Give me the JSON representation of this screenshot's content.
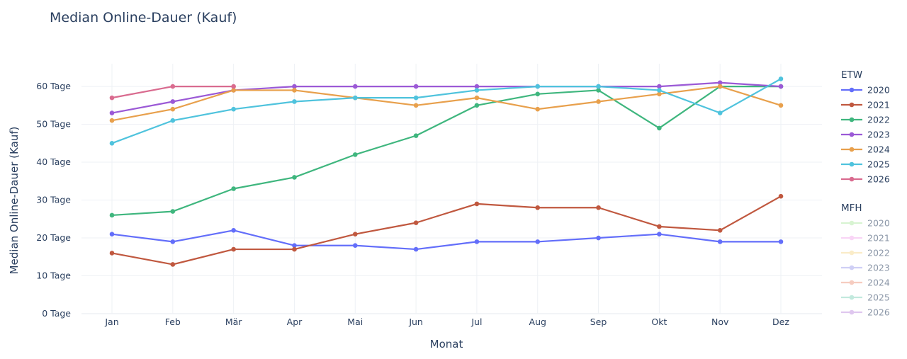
{
  "chart_data": {
    "type": "line",
    "title": "Median Online-Dauer (Kauf)",
    "xlabel": "Monat",
    "ylabel": "Median Online-Dauer (Kauf)",
    "categories": [
      "Jan",
      "Feb",
      "Mär",
      "Apr",
      "Mai",
      "Jun",
      "Jul",
      "Aug",
      "Sep",
      "Okt",
      "Nov",
      "Dez"
    ],
    "ylim": [
      0,
      66
    ],
    "yticks": [
      0,
      10,
      20,
      30,
      40,
      50,
      60
    ],
    "ytick_suffix": " Tage",
    "grid": true,
    "legend_position": "right",
    "legend_groups": [
      {
        "title": "ETW",
        "series": [
          {
            "name": "2020",
            "color": "#636efa",
            "values": [
              21,
              19,
              22,
              18,
              18,
              17,
              19,
              19,
              20,
              21,
              19,
              19
            ]
          },
          {
            "name": "2021",
            "color": "#c0583f",
            "values": [
              16,
              13,
              17,
              17,
              21,
              24,
              29,
              28,
              28,
              23,
              22,
              31
            ]
          },
          {
            "name": "2022",
            "color": "#3fb67e",
            "values": [
              26,
              27,
              33,
              36,
              42,
              47,
              55,
              58,
              59,
              49,
              60,
              60
            ]
          },
          {
            "name": "2023",
            "color": "#9b59d6",
            "values": [
              53,
              56,
              59,
              60,
              60,
              60,
              60,
              60,
              60,
              60,
              61,
              60
            ]
          },
          {
            "name": "2024",
            "color": "#e8a04c",
            "values": [
              51,
              54,
              59,
              59,
              57,
              55,
              57,
              54,
              56,
              58,
              60,
              55
            ]
          },
          {
            "name": "2025",
            "color": "#4fc3dd",
            "values": [
              45,
              51,
              54,
              56,
              57,
              57,
              59,
              60,
              60,
              59,
              53,
              62
            ]
          },
          {
            "name": "2026",
            "color": "#d96b8f",
            "values": [
              57,
              60,
              60,
              null,
              null,
              null,
              null,
              null,
              null,
              null,
              null,
              null
            ]
          }
        ]
      },
      {
        "title": "MFH",
        "hidden": true,
        "series": [
          {
            "name": "2020",
            "color": "#b9ecae"
          },
          {
            "name": "2021",
            "color": "#f5b3f0"
          },
          {
            "name": "2022",
            "color": "#f7dd9c"
          },
          {
            "name": "2023",
            "color": "#a9a9ee"
          },
          {
            "name": "2024",
            "color": "#f0a48e"
          },
          {
            "name": "2025",
            "color": "#92d8c2"
          },
          {
            "name": "2026",
            "color": "#c59be3"
          }
        ]
      }
    ]
  }
}
